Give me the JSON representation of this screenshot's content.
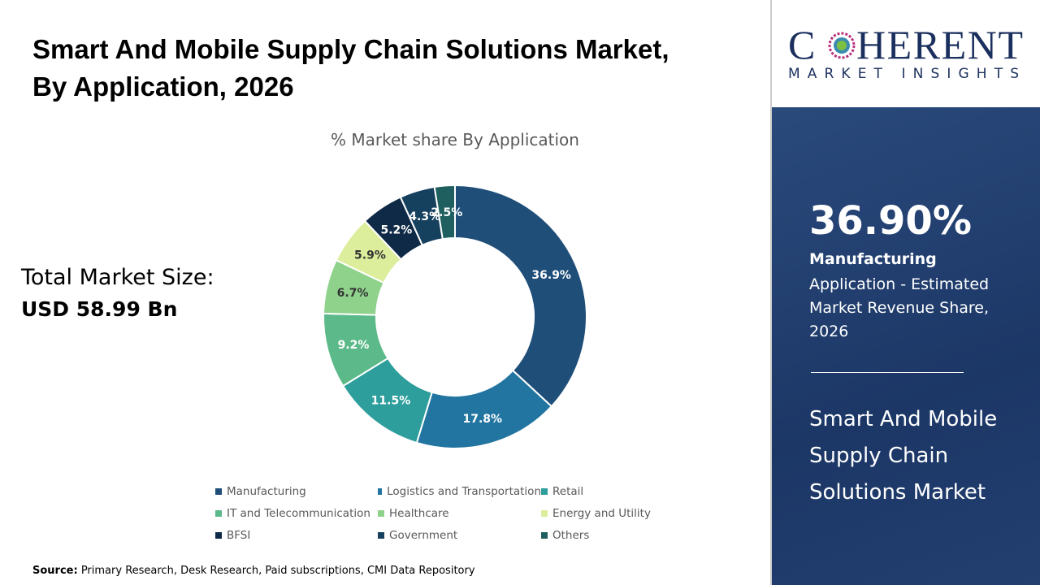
{
  "title": "Smart And Mobile Supply Chain Solutions Market, By Application, 2026",
  "total_label": "Total Market Size:",
  "total_value": "USD 58.99 Bn",
  "source_label": "Source:",
  "source_text": " Primary Research, Desk Research, Paid subscriptions, CMI Data Repository",
  "logo": {
    "line1": "COHERENT",
    "line2": "MARKET INSIGHTS"
  },
  "highlight": {
    "percent": "36.90%",
    "segment": "Manufacturing",
    "description": "Application - Estimated Market Revenue Share, 2026",
    "market": "Smart And Mobile Supply Chain Solutions Market"
  },
  "chart_data": {
    "type": "pie",
    "donut": true,
    "title": "% Market share By Application",
    "categories": [
      "Manufacturing",
      "Logistics and Transportation",
      "Retail",
      "IT and Telecommunication",
      "Healthcare",
      "Energy and Utility",
      "BFSI",
      "Government",
      "Others"
    ],
    "values": [
      36.9,
      17.8,
      11.5,
      9.2,
      6.7,
      5.9,
      5.2,
      4.3,
      2.5
    ],
    "labels": [
      "36.9%",
      "17.8%",
      "11.5%",
      "9.2%",
      "6.7%",
      "5.9%",
      "5.2%",
      "4.3%",
      "2.5%"
    ],
    "colors": [
      "#1f4e79",
      "#2175a0",
      "#2e9e9c",
      "#5cba8a",
      "#8fd28c",
      "#dcee9c",
      "#0f2a46",
      "#15405e",
      "#1f5f60"
    ],
    "legend_position": "bottom"
  }
}
